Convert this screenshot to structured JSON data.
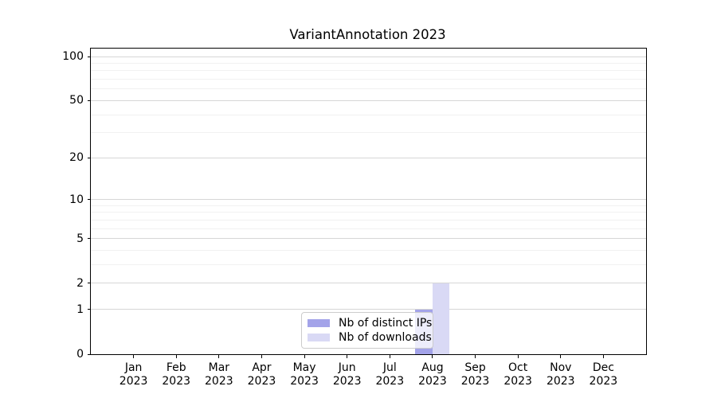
{
  "chart_data": {
    "type": "bar",
    "title": "VariantAnnotation 2023",
    "categories": [
      "Jan",
      "Feb",
      "Mar",
      "Apr",
      "May",
      "Jun",
      "Jul",
      "Aug",
      "Sep",
      "Oct",
      "Nov",
      "Dec"
    ],
    "x_tick_year": "2023",
    "series": [
      {
        "name": "Nb of distinct IPs",
        "color": "#a3a3e9",
        "values": [
          0,
          0,
          0,
          0,
          0,
          0,
          0,
          1,
          0,
          0,
          0,
          0
        ]
      },
      {
        "name": "Nb of downloads",
        "color": "#d9d9f5",
        "values": [
          0,
          0,
          0,
          0,
          0,
          0,
          0,
          2,
          0,
          0,
          0,
          0
        ]
      }
    ],
    "y_scale": "log10(1+v)",
    "ylim": [
      0,
      100
    ],
    "y_major_ticks": [
      0,
      1,
      2,
      5,
      10,
      20,
      50,
      100
    ],
    "y_minor_ticks": [
      3,
      4,
      6,
      7,
      8,
      9,
      30,
      40,
      60,
      70,
      80,
      90
    ],
    "grid": "horizontal",
    "legend_position": "inside-bottom-center"
  },
  "colors": {
    "background": "#ffffff",
    "axis": "#000000",
    "text": "#000000",
    "grid_major": "#d6d6d6",
    "grid_minor": "#f1f1f1",
    "legend_border": "#cccccc"
  }
}
